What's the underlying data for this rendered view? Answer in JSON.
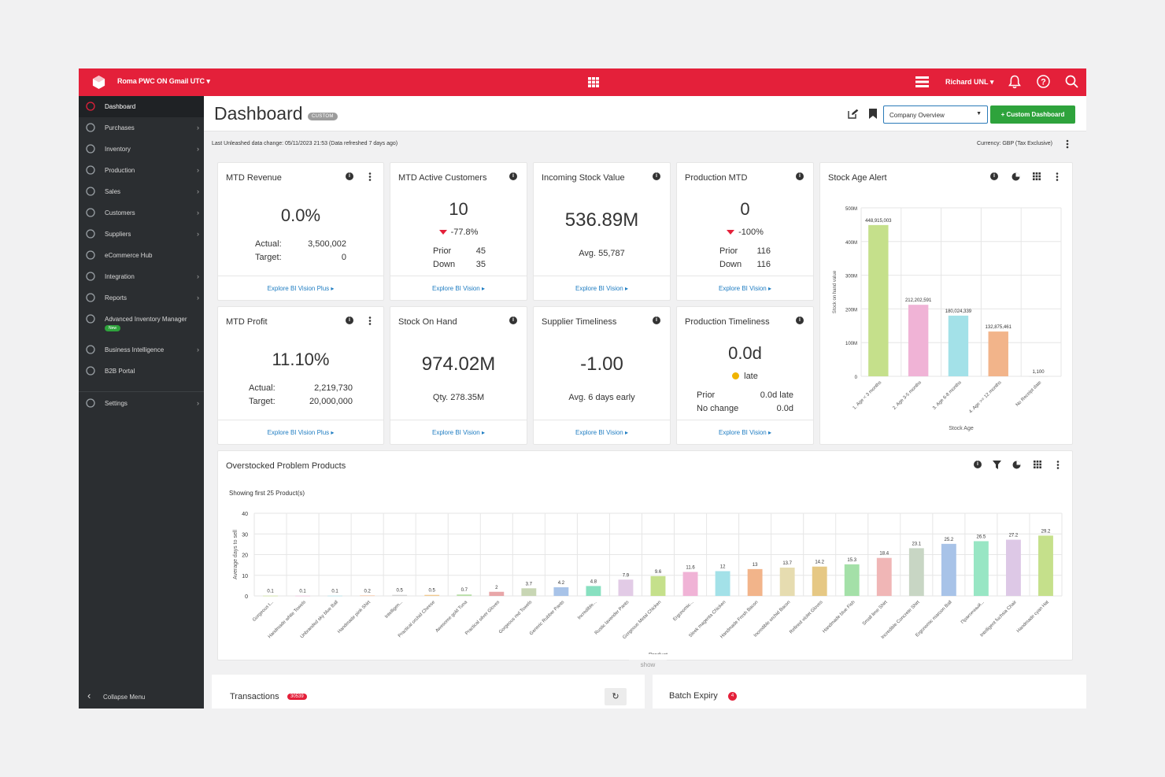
{
  "topbar": {
    "org": "Roma PWC ON Gmail UTC",
    "user": "Richard UNL"
  },
  "sidebar": {
    "items": [
      {
        "label": "Dashboard",
        "icon": "dashboard-icon",
        "chevron": false
      },
      {
        "label": "Purchases",
        "icon": "purchases-icon",
        "chevron": true
      },
      {
        "label": "Inventory",
        "icon": "inventory-icon",
        "chevron": true
      },
      {
        "label": "Production",
        "icon": "production-icon",
        "chevron": true
      },
      {
        "label": "Sales",
        "icon": "sales-icon",
        "chevron": true
      },
      {
        "label": "Customers",
        "icon": "customers-icon",
        "chevron": true
      },
      {
        "label": "Suppliers",
        "icon": "suppliers-icon",
        "chevron": true
      },
      {
        "label": "eCommerce Hub",
        "icon": "ecommerce-icon",
        "chevron": false
      },
      {
        "label": "Integration",
        "icon": "integration-icon",
        "chevron": true
      },
      {
        "label": "Reports",
        "icon": "reports-icon",
        "chevron": true
      },
      {
        "label": "Advanced Inventory Manager",
        "icon": "aim-icon",
        "chevron": false
      },
      {
        "label": "Business Intelligence",
        "icon": "bi-icon",
        "chevron": true
      },
      {
        "label": "B2B Portal",
        "icon": "cart-icon",
        "chevron": false
      },
      {
        "label": "Settings",
        "icon": "settings-icon",
        "chevron": true
      }
    ],
    "new_badge": "New",
    "collapse": "Collapse Menu"
  },
  "header": {
    "title": "Dashboard",
    "badge": "CUSTOM",
    "selected_view": "Company Overview",
    "custom_btn": "+ Custom Dashboard"
  },
  "infobar": {
    "last_change": "Last Unleashed data change: 05/11/2023 21:53 (Data refreshed 7 days ago)",
    "currency": "Currency:  GBP (Tax Exclusive)"
  },
  "cards": {
    "mtd_revenue": {
      "title": "MTD Revenue",
      "value": "0.0%",
      "l1": "Actual:",
      "v1": "3,500,002",
      "l2": "Target:",
      "v2": "0",
      "foot": "Explore BI Vision Plus ▸"
    },
    "mtd_customers": {
      "title": "MTD Active Customers",
      "value": "10",
      "change": "-77.8%",
      "l1": "Prior",
      "v1": "45",
      "l2": "Down",
      "v2": "35",
      "foot": "Explore BI Vision ▸"
    },
    "incoming_stock": {
      "title": "Incoming Stock Value",
      "value": "536.89M",
      "sub": "Avg. 55,787",
      "foot": "Explore BI Vision ▸"
    },
    "production_mtd": {
      "title": "Production MTD",
      "value": "0",
      "change": "-100%",
      "l1": "Prior",
      "v1": "116",
      "l2": "Down",
      "v2": "116",
      "foot": "Explore BI Vision ▸"
    },
    "mtd_profit": {
      "title": "MTD Profit",
      "value": "11.10%",
      "l1": "Actual:",
      "v1": "2,219,730",
      "l2": "Target:",
      "v2": "20,000,000",
      "foot": "Explore BI Vision Plus ▸"
    },
    "stock_on_hand": {
      "title": "Stock On Hand",
      "value": "974.02M",
      "sub": "Qty. 278.35M",
      "foot": "Explore BI Vision ▸"
    },
    "supplier_timeliness": {
      "title": "Supplier Timeliness",
      "value": "-1.00",
      "sub": "Avg. 6 days early",
      "foot": "Explore BI Vision ▸"
    },
    "production_timeliness": {
      "title": "Production Timeliness",
      "value": "0.0d",
      "status": "late",
      "l1": "Prior",
      "v1": "0.0d late",
      "l2": "No change",
      "v2": "0.0d",
      "foot": "Explore BI Vision ▸"
    },
    "stock_age": {
      "title": "Stock Age Alert"
    },
    "overstocked": {
      "title": "Overstocked Problem Products",
      "subtitle": "Showing first 25 Product(s)"
    }
  },
  "bottom": {
    "transactions": "Transactions",
    "transactions_count": "30539",
    "batch_expiry": "Batch Expiry",
    "batch_count": "4",
    "show": "show"
  },
  "colors": {
    "brand": "#e4203a",
    "green": "#2ea33c",
    "link": "#1f7dc2",
    "sidebar": "#2b2e31"
  },
  "chart_data": [
    {
      "type": "bar",
      "title": "Stock Age Alert",
      "xlabel": "Stock Age",
      "ylabel": "Stock on hand value",
      "ylim": [
        0,
        500000000
      ],
      "yticks": [
        "0",
        "100M",
        "200M",
        "300M",
        "400M",
        "500M"
      ],
      "categories": [
        "1. Age < 3 months",
        "2. Age 3-5 months",
        "3. Age 6-8 months",
        "4. Age >= 12 months",
        "No Receipt date"
      ],
      "values": [
        448915003,
        212202591,
        180024339,
        132875461,
        1100
      ],
      "labels": [
        "448,915,003",
        "212,202,591",
        "180,024,339",
        "132,875,461",
        "1,100"
      ],
      "colors": [
        "#c5e08b",
        "#f0b3d6",
        "#a3e1e8",
        "#f2b48a",
        "#dddddd"
      ]
    },
    {
      "type": "bar",
      "title": "Overstocked Problem Products",
      "xlabel": "Product",
      "ylabel": "Average days to sell",
      "ylim": [
        0,
        40
      ],
      "yticks": [
        "0",
        "10",
        "20",
        "30",
        "40"
      ],
      "categories": [
        "Gorgeous t...",
        "Handmade white Towels",
        "Unbranded sky blue Ball",
        "Handmade pink Shirt",
        "Intelligen...",
        "Practical orchid Cheese",
        "Awesome gold Tuna",
        "Practical silver Gloves",
        "Gorgeous red Towels",
        "Generic Rubber Pants",
        "Incredible...",
        "Rustic lavender Pants",
        "Gorgeous Metal Chicken",
        "Ergonomic...",
        "Sleek magenta Chicken",
        "Handmade Fresh Bacon",
        "Incredible orchid Bacon",
        "Refined violet Gloves",
        "Handmade blue Fish",
        "Small lime Shirt",
        "Incredible Concrete Shirt",
        "Ergonomic maroon Ball",
        "Практичный...",
        "Intelligent fuchsia Chair",
        "Handmade cyan Hat"
      ],
      "values": [
        0.1,
        0.1,
        0.1,
        0.2,
        0.5,
        0.5,
        0.7,
        2,
        3.7,
        4.2,
        4.8,
        7.9,
        9.6,
        11.6,
        12,
        13,
        13.7,
        14.2,
        15.3,
        18.4,
        23.1,
        25.2,
        26.5,
        27.2,
        29.2
      ],
      "colors": [
        "#c5e08b",
        "#f0b3d6",
        "#a3e1e8",
        "#f2b48a",
        "#d3d3d3",
        "#f0c98f",
        "#b9dfa8",
        "#e8a6a8",
        "#c8d6b4",
        "#a8c3e8",
        "#88e0c0",
        "#e2cbe6",
        "#c5e08b",
        "#f0b3d6",
        "#a3e1e8",
        "#f2b48a",
        "#e6dcb0",
        "#e6c884",
        "#a4e0a8",
        "#f0b6b6",
        "#c8d6c4",
        "#a8c3e8",
        "#98e6c4",
        "#ddc8e6",
        "#c5e08b"
      ]
    }
  ]
}
